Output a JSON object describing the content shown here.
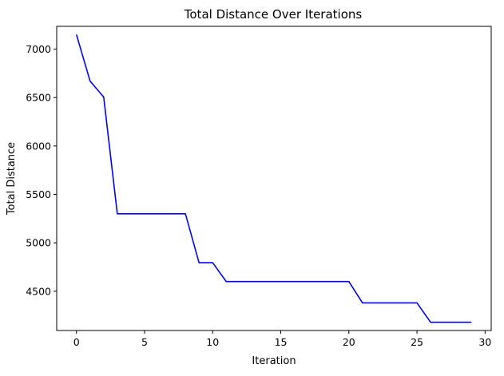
{
  "chart_data": {
    "type": "line",
    "title": "Total Distance Over Iterations",
    "xlabel": "Iteration",
    "ylabel": "Total Distance",
    "xlim": [
      -1.45,
      30.45
    ],
    "ylim": [
      4095,
      7235
    ],
    "xticks": [
      0,
      5,
      10,
      15,
      20,
      25,
      30
    ],
    "yticks": [
      4500,
      5000,
      5500,
      6000,
      6500,
      7000
    ],
    "grid": false,
    "series": [
      {
        "color": "#0000ff",
        "x": [
          0,
          1,
          2,
          3,
          4,
          5,
          6,
          7,
          8,
          9,
          10,
          11,
          12,
          13,
          14,
          15,
          16,
          17,
          18,
          19,
          20,
          21,
          22,
          23,
          24,
          25,
          26,
          27,
          28,
          29
        ],
        "y": [
          7150,
          6670,
          6505,
          5300,
          5300,
          5300,
          5300,
          5300,
          5300,
          4795,
          4795,
          4600,
          4600,
          4600,
          4600,
          4600,
          4600,
          4600,
          4600,
          4600,
          4600,
          4380,
          4380,
          4380,
          4380,
          4380,
          4180,
          4180,
          4180,
          4180
        ]
      }
    ]
  }
}
